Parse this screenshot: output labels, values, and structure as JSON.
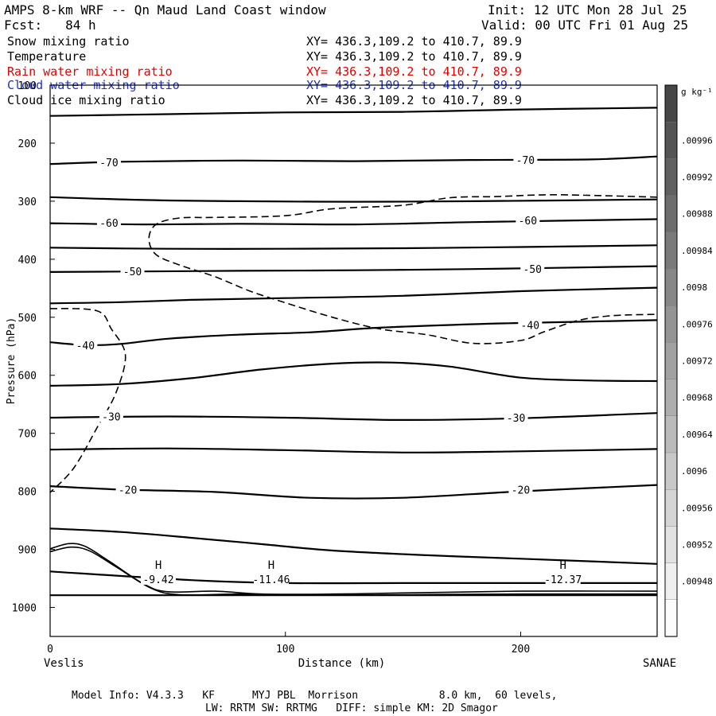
{
  "header": {
    "title": "AMPS 8-km WRF -- Qn Maud Land Coast window",
    "init": "Init: 12 UTC Mon 28 Jul 25",
    "fcst": "Fcst:   84 h",
    "valid": "Valid: 00 UTC Fri 01 Aug 25"
  },
  "fields": [
    {
      "name": "Snow mixing ratio",
      "xy": "XY= 436.3,109.2 to 410.7, 89.9",
      "color": "#000000"
    },
    {
      "name": "Temperature",
      "xy": "XY= 436.3,109.2 to 410.7, 89.9",
      "color": "#000000"
    },
    {
      "name": "Rain water mixing ratio",
      "xy": "XY= 436.3,109.2 to 410.7, 89.9",
      "color": "#e00000"
    },
    {
      "name": "Cloud water mixing ratio",
      "xy": "XY= 436.3,109.2 to 410.7, 89.9",
      "color": "#2030c0"
    },
    {
      "name": "Cloud ice mixing ratio",
      "xy": "XY= 436.3,109.2 to 410.7, 89.9",
      "color": "#000000"
    }
  ],
  "footer": {
    "model_info": "Model Info: V4.3.3   KF      MYJ PBL  Morrison             8.0 km,  60 levels,",
    "model_info2": "LW: RRTM SW: RRTMG   DIFF: simple KM: 2D Smagor"
  },
  "chart_data": {
    "type": "contour",
    "xlabel": "Distance (km)",
    "ylabel": "Pressure (hPa)",
    "xlim": [
      0,
      258
    ],
    "ylim": [
      1050,
      100
    ],
    "y_scale": "linear, inverted",
    "x_ticks": [
      0,
      100,
      200
    ],
    "y_ticks": [
      100,
      200,
      300,
      400,
      500,
      600,
      700,
      800,
      900,
      1000
    ],
    "left_end_label": "Veslis",
    "right_end_label": "SANAE",
    "colorbar": {
      "unit": "g kg⁻¹",
      "ticks": [
        ".00996",
        ".00992",
        ".00988",
        ".00984",
        ".0098",
        ".00976",
        ".00972",
        ".00968",
        ".00964",
        ".0096",
        ".00956",
        ".00952",
        ".00948"
      ]
    },
    "temperature_contours": [
      {
        "points": [
          [
            0,
            153
          ],
          [
            50,
            150
          ],
          [
            100,
            147
          ],
          [
            150,
            146
          ],
          [
            200,
            142
          ],
          [
            258,
            139
          ]
        ]
      },
      {
        "label": "-70",
        "label_at": [
          25,
          233
        ],
        "label2": "-70",
        "label2_at": [
          202,
          229
        ],
        "points": [
          [
            0,
            236
          ],
          [
            30,
            232
          ],
          [
            80,
            230
          ],
          [
            130,
            231
          ],
          [
            180,
            229
          ],
          [
            230,
            228
          ],
          [
            258,
            223
          ]
        ]
      },
      {
        "points": [
          [
            0,
            293
          ],
          [
            40,
            298
          ],
          [
            80,
            300
          ],
          [
            130,
            301
          ],
          [
            180,
            300
          ],
          [
            258,
            297
          ]
        ]
      },
      {
        "label": "-60",
        "label_at": [
          25,
          337
        ],
        "label2": "-60",
        "label2_at": [
          203,
          333
        ],
        "points": [
          [
            0,
            338
          ],
          [
            40,
            340
          ],
          [
            80,
            339
          ],
          [
            130,
            340
          ],
          [
            180,
            336
          ],
          [
            258,
            331
          ]
        ]
      },
      {
        "points": [
          [
            0,
            380
          ],
          [
            50,
            382
          ],
          [
            100,
            382
          ],
          [
            150,
            381
          ],
          [
            200,
            379
          ],
          [
            258,
            376
          ]
        ]
      },
      {
        "label": "-50",
        "label_at": [
          35,
          421
        ],
        "label2": "-50",
        "label2_at": [
          205,
          417
        ],
        "points": [
          [
            0,
            422
          ],
          [
            40,
            421
          ],
          [
            80,
            420
          ],
          [
            130,
            419
          ],
          [
            180,
            417
          ],
          [
            258,
            412
          ]
        ]
      },
      {
        "points": [
          [
            0,
            476
          ],
          [
            30,
            474
          ],
          [
            60,
            470
          ],
          [
            100,
            467
          ],
          [
            150,
            463
          ],
          [
            200,
            455
          ],
          [
            258,
            449
          ]
        ]
      },
      {
        "label": "-40",
        "label_at": [
          15,
          548
        ],
        "label2": "-40",
        "label2_at": [
          204,
          513
        ],
        "points": [
          [
            0,
            543
          ],
          [
            15,
            548
          ],
          [
            30,
            546
          ],
          [
            50,
            537
          ],
          [
            80,
            530
          ],
          [
            110,
            526
          ],
          [
            140,
            518
          ],
          [
            180,
            512
          ],
          [
            210,
            509
          ],
          [
            258,
            505
          ]
        ]
      },
      {
        "points": [
          [
            0,
            618
          ],
          [
            30,
            615
          ],
          [
            60,
            605
          ],
          [
            90,
            590
          ],
          [
            120,
            580
          ],
          [
            145,
            578
          ],
          [
            170,
            585
          ],
          [
            200,
            604
          ],
          [
            230,
            609
          ],
          [
            258,
            610
          ]
        ]
      },
      {
        "label": "-30",
        "label_at": [
          26,
          671
        ],
        "label2": "-30",
        "label2_at": [
          198,
          673
        ],
        "points": [
          [
            0,
            673
          ],
          [
            50,
            671
          ],
          [
            100,
            673
          ],
          [
            150,
            677
          ],
          [
            200,
            674
          ],
          [
            258,
            665
          ]
        ]
      },
      {
        "points": [
          [
            0,
            728
          ],
          [
            50,
            726
          ],
          [
            100,
            729
          ],
          [
            150,
            733
          ],
          [
            200,
            731
          ],
          [
            258,
            727
          ]
        ]
      },
      {
        "label": "-20",
        "label_at": [
          33,
          797
        ],
        "label2": "-20",
        "label2_at": [
          200,
          797
        ],
        "points": [
          [
            0,
            791
          ],
          [
            30,
            797
          ],
          [
            70,
            801
          ],
          [
            110,
            811
          ],
          [
            150,
            811
          ],
          [
            200,
            800
          ],
          [
            258,
            789
          ]
        ]
      },
      {
        "points": [
          [
            0,
            864
          ],
          [
            30,
            870
          ],
          [
            60,
            880
          ],
          [
            90,
            891
          ],
          [
            120,
            902
          ],
          [
            160,
            910
          ],
          [
            200,
            916
          ],
          [
            258,
            925
          ]
        ]
      },
      {
        "points": [
          [
            0,
            938
          ],
          [
            60,
            953
          ],
          [
            100,
            958
          ],
          [
            150,
            958
          ],
          [
            200,
            958
          ],
          [
            258,
            958
          ]
        ]
      },
      {
        "points": [
          [
            0,
            979
          ],
          [
            258,
            979
          ]
        ]
      }
    ],
    "terrain_lines": [
      {
        "points": [
          [
            0,
            899
          ],
          [
            8,
            890
          ],
          [
            15,
            895
          ],
          [
            25,
            920
          ],
          [
            40,
            960
          ],
          [
            50,
            973
          ],
          [
            70,
            972
          ],
          [
            90,
            977
          ],
          [
            120,
            977
          ],
          [
            150,
            975
          ],
          [
            200,
            972
          ],
          [
            258,
            972
          ]
        ]
      },
      {
        "points": [
          [
            0,
            904
          ],
          [
            9,
            896
          ],
          [
            17,
            903
          ],
          [
            28,
            930
          ],
          [
            43,
            967
          ],
          [
            55,
            978
          ],
          [
            80,
            977
          ],
          [
            100,
            979
          ],
          [
            150,
            978
          ],
          [
            200,
            977
          ],
          [
            258,
            977
          ]
        ]
      }
    ],
    "cloud_ice_dashed": [
      {
        "points": [
          [
            0,
            485
          ],
          [
            20,
            489
          ],
          [
            26,
            520
          ],
          [
            32,
            565
          ],
          [
            28,
            630
          ],
          [
            20,
            690
          ],
          [
            10,
            760
          ],
          [
            0,
            802
          ]
        ]
      },
      {
        "points": [
          [
            258,
            293
          ],
          [
            230,
            290
          ],
          [
            210,
            289
          ],
          [
            190,
            292
          ],
          [
            170,
            294
          ],
          [
            150,
            307
          ],
          [
            120,
            313
          ],
          [
            100,
            325
          ],
          [
            70,
            328
          ],
          [
            55,
            329
          ],
          [
            45,
            340
          ],
          [
            42,
            365
          ],
          [
            45,
            392
          ],
          [
            55,
            410
          ],
          [
            70,
            430
          ],
          [
            85,
            455
          ],
          [
            100,
            475
          ],
          [
            120,
            500
          ],
          [
            140,
            520
          ],
          [
            160,
            530
          ],
          [
            180,
            545
          ],
          [
            200,
            540
          ],
          [
            210,
            525
          ],
          [
            225,
            505
          ],
          [
            240,
            497
          ],
          [
            258,
            495
          ]
        ]
      }
    ],
    "annotations": [
      {
        "text": "H",
        "sub": "-9.42",
        "x": 46,
        "y": 950
      },
      {
        "text": "H",
        "sub": "-11.46",
        "x": 94,
        "y": 950
      },
      {
        "text": "H",
        "sub": "-12.37",
        "x": 218,
        "y": 950
      }
    ]
  }
}
